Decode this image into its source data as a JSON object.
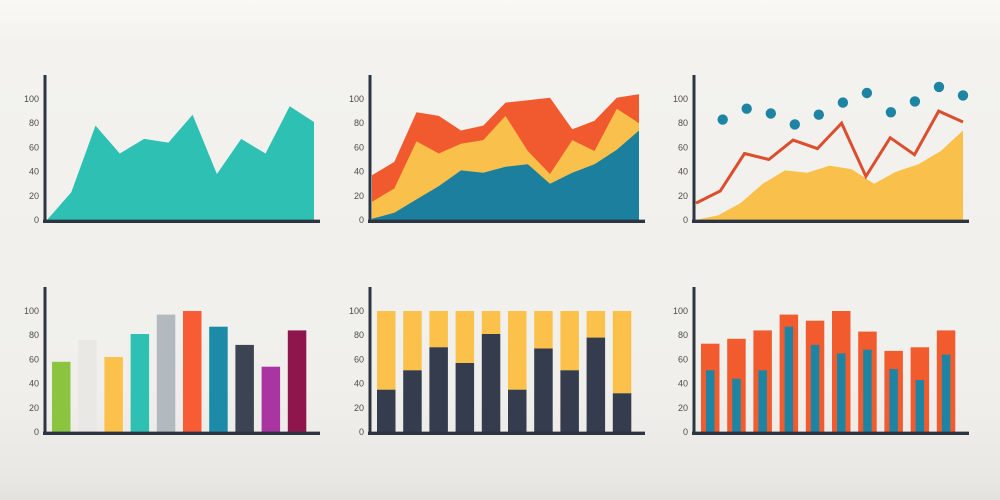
{
  "canvas": {
    "background_top": "#f9f8f4",
    "background_main": "#f0efeb",
    "background_bottom": "#e4e2de",
    "axis_color": "#2d3542",
    "tick_color": "#4f4c47"
  },
  "palette": {
    "turquoise": "#2fc0b4",
    "orange_red": "#f05a2e",
    "yellow": "#f9c14b",
    "deep_teal": "#1d7f9e",
    "red_line": "#db4e2e",
    "dot_teal": "#1d84a3",
    "dark_navy": "#343c4e"
  },
  "chart_data": [
    {
      "type": "area",
      "name": "teal-area-chart",
      "yticks": [
        0,
        20,
        40,
        60,
        80,
        100
      ],
      "ylim": [
        0,
        120
      ],
      "grid": false,
      "legend": "none",
      "series": [
        {
          "name": "teal",
          "color": "#2fc0b4",
          "values": [
            0,
            23,
            78,
            55,
            67,
            64,
            87,
            38,
            67,
            55,
            94,
            81
          ]
        }
      ]
    },
    {
      "type": "stacked-area",
      "name": "stacked-area-chart",
      "yticks": [
        0,
        20,
        40,
        60,
        80,
        100
      ],
      "ylim": [
        0,
        120
      ],
      "grid": false,
      "legend": "none",
      "note": "series values are absolute stack tops, drawn back-to-front",
      "series": [
        {
          "name": "orange",
          "color": "#f05a2e",
          "values": [
            37,
            48,
            89,
            86,
            74,
            78,
            97,
            99,
            101,
            75,
            82,
            101,
            104
          ]
        },
        {
          "name": "yellow",
          "color": "#f9c14b",
          "values": [
            15,
            26,
            65,
            55,
            63,
            66,
            86,
            57,
            38,
            66,
            57,
            92,
            80
          ]
        },
        {
          "name": "teal",
          "color": "#1d7f9e",
          "values": [
            1,
            6,
            17,
            28,
            41,
            39,
            44,
            46,
            30,
            39,
            46,
            58,
            74
          ]
        }
      ]
    },
    {
      "type": "area-line-scatter",
      "name": "line-dots-area-chart",
      "yticks": [
        0,
        20,
        40,
        60,
        80,
        100
      ],
      "ylim": [
        0,
        120
      ],
      "grid": false,
      "legend": "none",
      "area": {
        "name": "yellow-area",
        "color": "#f9c14b",
        "values": [
          0,
          4,
          14,
          30,
          41,
          39,
          45,
          42,
          30,
          40,
          46,
          57,
          74
        ]
      },
      "line": {
        "name": "red-line",
        "color": "#db4e2e",
        "values": [
          14,
          24,
          55,
          50,
          66,
          59,
          80,
          36,
          68,
          54,
          90,
          81
        ]
      },
      "dots": {
        "name": "teal-dots",
        "color": "#1d84a3",
        "x_start_frac": 0.1,
        "values": [
          83,
          92,
          88,
          79,
          87,
          97,
          105,
          89,
          98,
          110,
          103
        ]
      }
    },
    {
      "type": "bar",
      "name": "multicolor-bar-chart",
      "yticks": [
        0,
        20,
        40,
        60,
        80,
        100
      ],
      "ylim": [
        0,
        120
      ],
      "grid": false,
      "legend": "none",
      "values": [
        58,
        76,
        62,
        81,
        97,
        100,
        87,
        72,
        54,
        84
      ],
      "colors": [
        "#8bc53f",
        "#e9e8e4",
        "#fbc14b",
        "#2fc0b4",
        "#b2b9bf",
        "#f85c35",
        "#1d8ba8",
        "#3c4452",
        "#a935a2",
        "#8e164d"
      ]
    },
    {
      "type": "stacked-bar",
      "name": "stacked-bar-chart",
      "yticks": [
        0,
        20,
        40,
        60,
        80,
        100
      ],
      "ylim": [
        0,
        120
      ],
      "grid": false,
      "legend": "none",
      "total": 100,
      "bottom": {
        "name": "dark-segment",
        "color": "#343c4e",
        "values": [
          35,
          51,
          70,
          57,
          81,
          35,
          69,
          51,
          78,
          32
        ]
      },
      "top": {
        "name": "yellow-segment",
        "color": "#fbc14b"
      }
    },
    {
      "type": "overlay-bar",
      "name": "overlay-bar-chart",
      "yticks": [
        0,
        20,
        40,
        60,
        80,
        100
      ],
      "ylim": [
        0,
        120
      ],
      "grid": false,
      "legend": "none",
      "outer": {
        "name": "orange-bar",
        "color": "#f15b2e",
        "values": [
          73,
          77,
          84,
          97,
          92,
          100,
          83,
          67,
          70,
          84
        ]
      },
      "inner": {
        "name": "teal-bar",
        "color": "#1d84a3",
        "values": [
          51,
          44,
          51,
          87,
          72,
          65,
          68,
          52,
          43,
          64
        ]
      }
    }
  ]
}
